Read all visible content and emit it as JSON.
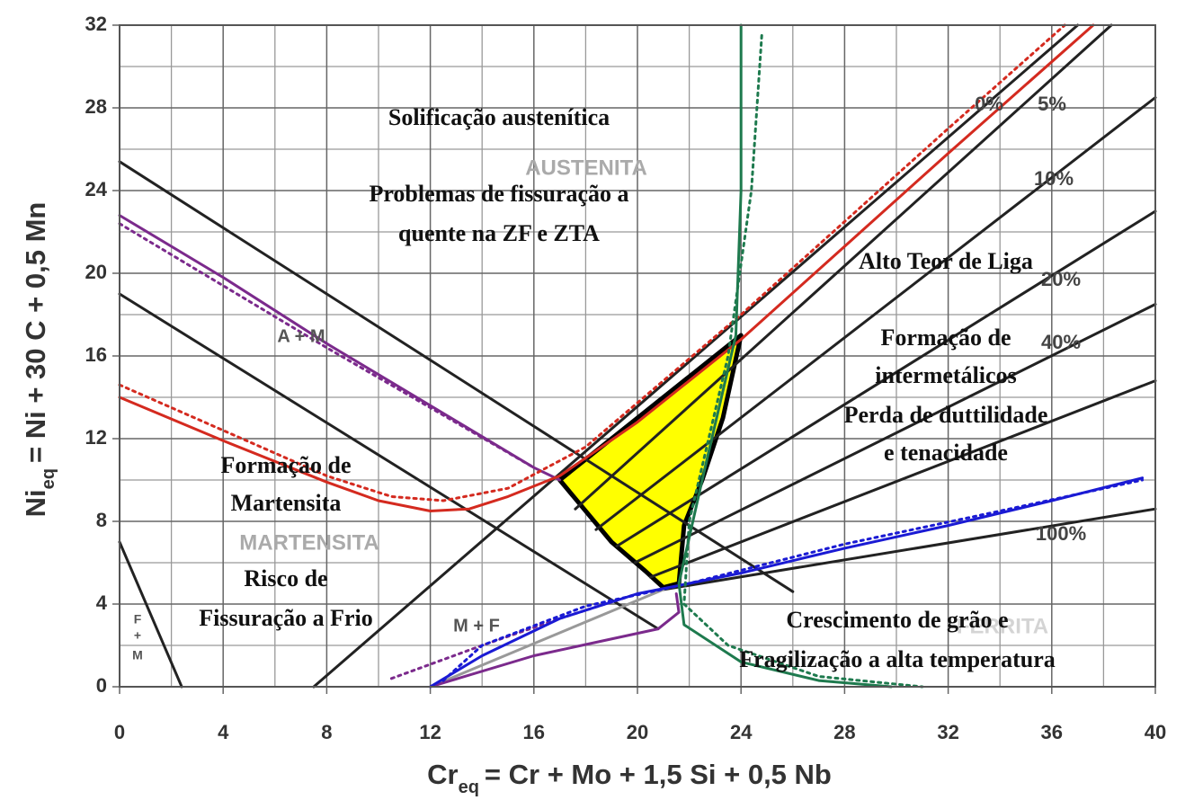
{
  "chart_data": {
    "type": "line",
    "x_label": {
      "main": "Cr",
      "sub": "eq",
      "rest": "= Cr + Mo + 1,5 Si + 0,5 Nb"
    },
    "y_label": {
      "main": "Ni",
      "sub": "eq",
      "rest": "= Ni + 30 C + 0,5 Mn"
    },
    "xlim": [
      0,
      40
    ],
    "ylim": [
      0,
      32
    ],
    "xticks": [
      0,
      4,
      8,
      12,
      16,
      20,
      24,
      28,
      32,
      36,
      40
    ],
    "yticks": [
      0,
      4,
      8,
      12,
      16,
      20,
      24,
      28,
      32
    ],
    "xgrid": [
      2,
      6,
      10,
      14,
      18,
      22,
      26,
      30,
      34,
      38
    ],
    "ygrid": [
      2,
      6,
      10,
      14,
      18,
      22,
      26,
      30
    ],
    "grid": true,
    "series": [
      {
        "color": "#ffff00",
        "fill": true,
        "x": [
          17,
          24,
          23.3,
          22.5,
          21.8,
          21.6,
          21,
          20.3,
          19,
          17
        ],
        "y": [
          10,
          17,
          13,
          10,
          7.8,
          5,
          4.8,
          5.6,
          7,
          10
        ]
      },
      {
        "color": "#222222",
        "x": [
          7.5,
          37
        ],
        "y": [
          0,
          32
        ]
      },
      {
        "color": "#222222",
        "x": [
          17.6,
          38.3
        ],
        "y": [
          8.6,
          32
        ]
      },
      {
        "color": "#222222",
        "x": [
          18.4,
          40
        ],
        "y": [
          7.6,
          28.5
        ]
      },
      {
        "color": "#222222",
        "x": [
          19.2,
          40
        ],
        "y": [
          6.8,
          23
        ]
      },
      {
        "color": "#222222",
        "x": [
          19.9,
          40
        ],
        "y": [
          6,
          18.5
        ]
      },
      {
        "color": "#222222",
        "x": [
          20.5,
          40
        ],
        "y": [
          5.3,
          14.8
        ]
      },
      {
        "color": "#222222",
        "x": [
          21,
          40
        ],
        "y": [
          4.7,
          8.6
        ]
      },
      {
        "color": "#222222",
        "x": [
          0,
          26
        ],
        "y": [
          25.4,
          4.6
        ]
      },
      {
        "color": "#222222",
        "x": [
          0,
          20.8
        ],
        "y": [
          19,
          2.8
        ]
      },
      {
        "color": "#222222",
        "x": [
          0,
          2.4
        ],
        "y": [
          7,
          0
        ]
      },
      {
        "color": "#999999",
        "x": [
          12,
          21
        ],
        "y": [
          0,
          4.7
        ]
      },
      {
        "color": "#7b2a8c",
        "x": [
          0,
          4,
          8,
          12,
          16,
          17
        ],
        "y": [
          22.8,
          19.8,
          16.6,
          13.6,
          10.6,
          10
        ]
      },
      {
        "color": "#7b2a8c",
        "dash": true,
        "x": [
          0,
          4,
          8,
          12,
          16
        ],
        "y": [
          22.4,
          19.4,
          16.4,
          13.5,
          10.6
        ]
      },
      {
        "color": "#7b2a8c",
        "x": [
          12,
          16,
          20.8,
          21.6,
          21.5
        ],
        "y": [
          0,
          1.5,
          2.8,
          3.6,
          4.5
        ]
      },
      {
        "color": "#7b2a8c",
        "dash": true,
        "x": [
          10.5,
          14,
          17,
          20
        ],
        "y": [
          0.4,
          2,
          3.3,
          4.5
        ]
      },
      {
        "color": "#d42a1f",
        "x": [
          0,
          4,
          8,
          10,
          12,
          13.5,
          15,
          17,
          20,
          24,
          28,
          32,
          37.6
        ],
        "y": [
          14,
          11.9,
          9.9,
          9,
          8.5,
          8.6,
          9.2,
          10.2,
          12.8,
          16.8,
          21.3,
          25.8,
          32
        ]
      },
      {
        "color": "#d42a1f",
        "dash": true,
        "x": [
          0,
          4,
          8,
          10.5,
          12.5,
          15,
          18,
          24,
          28,
          32,
          36.5
        ],
        "y": [
          14.6,
          12.4,
          10.2,
          9.2,
          9,
          9.6,
          11.6,
          18,
          22.5,
          27,
          32
        ]
      },
      {
        "color": "#1a1ad4",
        "x": [
          12,
          14,
          17,
          20,
          24,
          28,
          32,
          36,
          39.5
        ],
        "y": [
          0,
          1.5,
          3.3,
          4.5,
          5.5,
          6.7,
          7.8,
          9,
          10.1
        ]
      },
      {
        "color": "#1a1ad4",
        "dash": true,
        "x": [
          12.5,
          14,
          18,
          22,
          28,
          34,
          39.5
        ],
        "y": [
          0.3,
          2,
          3.9,
          5,
          6.9,
          8.5,
          10
        ]
      },
      {
        "color": "#1e7a4e",
        "x": [
          24,
          24,
          23.8,
          22.5,
          21.6,
          21.8,
          24,
          27,
          29.8
        ],
        "y": [
          32,
          24,
          17,
          10,
          5,
          3,
          1.2,
          0.3,
          0
        ]
      },
      {
        "color": "#1e7a4e",
        "dash": true,
        "x": [
          24.8,
          24.4,
          23.5,
          22,
          21.8,
          23.5,
          27,
          31
        ],
        "y": [
          31.5,
          24,
          16,
          8,
          4,
          2,
          0.5,
          0
        ]
      }
    ],
    "annotations": [
      "Solificação austenítica",
      "AUSTENITA",
      "Problemas de fissuração a",
      "quente na ZF e ZTA",
      "Alto Teor de Liga",
      "Formação de",
      "intermetálicos",
      "Perda de duttilidade",
      "e tenacidade",
      "A + M",
      "Formação de",
      "Martensita",
      "MARTENSITA",
      "Risco de",
      "Fissuração a Frio",
      "M + F",
      "FERRITA",
      "Crescimento de grão e",
      "Fragilização a alta temperatura",
      "F",
      "+",
      "M",
      "0%",
      "5%",
      "10%",
      "20%",
      "40%",
      "100%"
    ]
  }
}
